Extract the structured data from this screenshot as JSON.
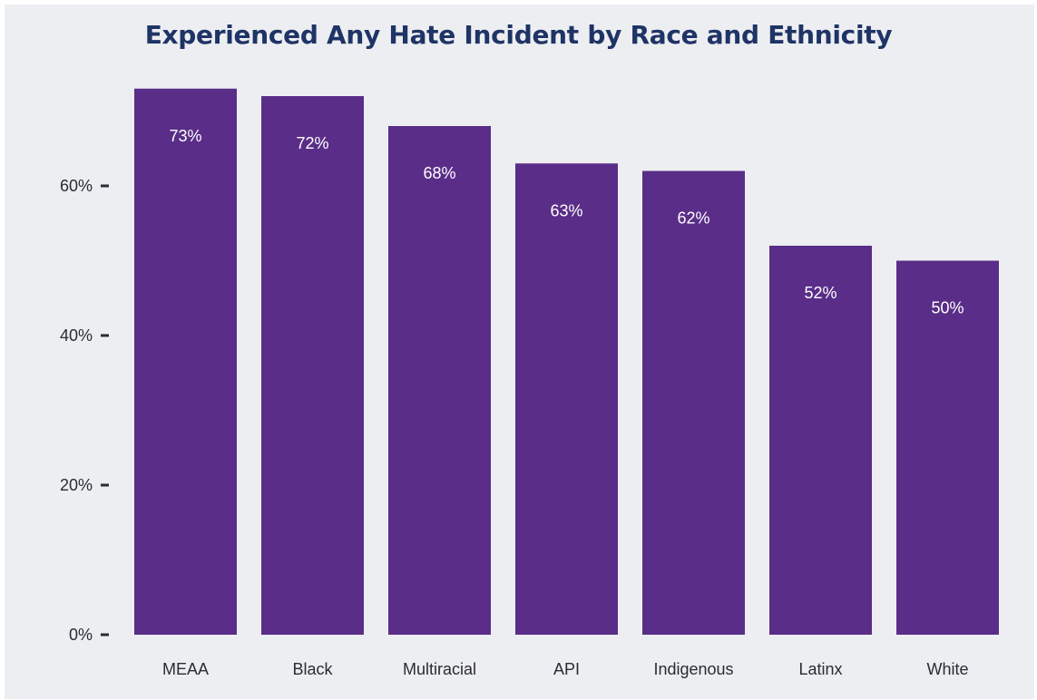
{
  "chart_data": {
    "type": "bar",
    "title": "Experienced Any Hate Incident by Race and Ethnicity",
    "xlabel": "",
    "ylabel": "",
    "categories": [
      "MEAA",
      "Black",
      "Multiracial",
      "API",
      "Indigenous",
      "Latinx",
      "White"
    ],
    "values": [
      73,
      72,
      68,
      63,
      62,
      52,
      50
    ],
    "data_labels": [
      "73%",
      "72%",
      "68%",
      "63%",
      "62%",
      "52%",
      "50%"
    ],
    "ylim": [
      0,
      75
    ],
    "yticks": [
      0,
      20,
      40,
      60
    ],
    "ytick_labels": [
      "0%",
      "20%",
      "40%",
      "60%"
    ],
    "grid": false,
    "legend": "none",
    "colors": {
      "bar": "#5a2d88",
      "background": "#edeef1",
      "title": "#1f3466",
      "text": "#2b2b33"
    }
  }
}
